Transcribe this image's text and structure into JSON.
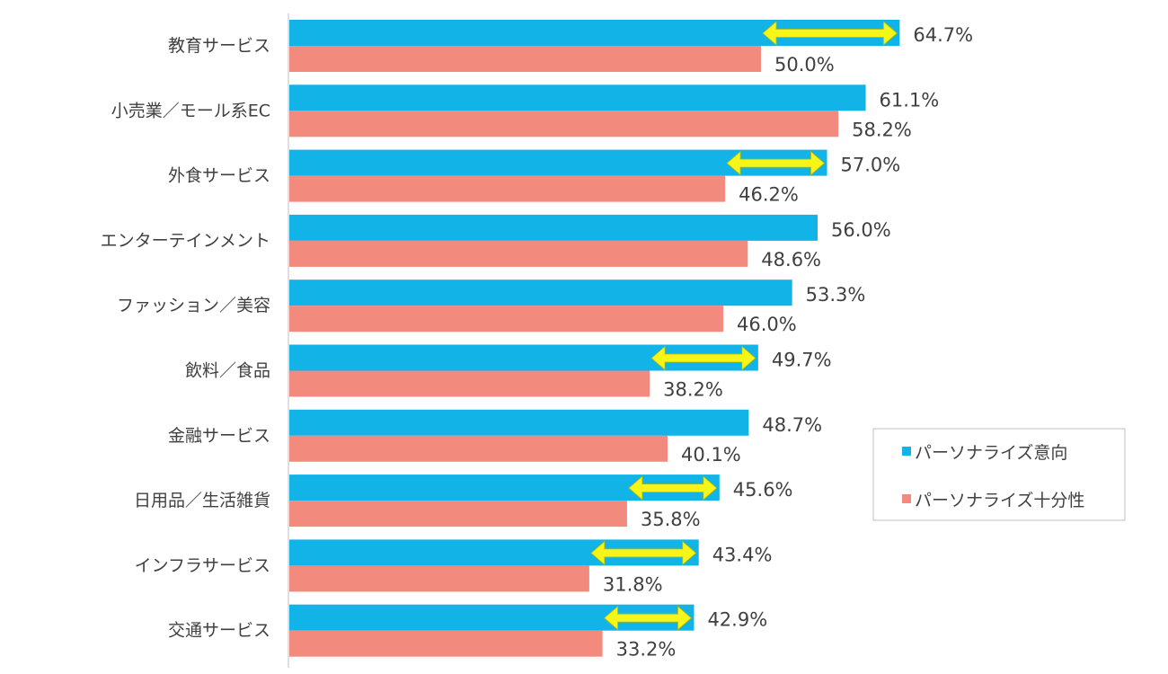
{
  "chart_data": {
    "type": "bar",
    "orientation": "horizontal",
    "categories": [
      "教育サービス",
      "小売業／モール系EC",
      "外食サービス",
      "エンターテインメント",
      "ファッション／美容",
      "飲料／食品",
      "金融サービス",
      "日用品／生活雑貨",
      "インフラサービス",
      "交通サービス"
    ],
    "series": [
      {
        "name": "パーソナライズ意向",
        "color": "#12b4e8",
        "values": [
          64.7,
          61.1,
          57.0,
          56.0,
          53.3,
          49.7,
          48.7,
          45.6,
          43.4,
          42.9
        ],
        "labels": [
          "64.7%",
          "61.1%",
          "57.0%",
          "56.0%",
          "53.3%",
          "49.7%",
          "48.7%",
          "45.6%",
          "43.4%",
          "42.9%"
        ]
      },
      {
        "name": "パーソナライズ十分性",
        "color": "#f28b7d",
        "values": [
          50.0,
          58.2,
          46.2,
          48.6,
          46.0,
          38.2,
          40.1,
          35.8,
          31.8,
          33.2
        ],
        "labels": [
          "50.0%",
          "58.2%",
          "46.2%",
          "48.6%",
          "46.0%",
          "38.2%",
          "40.1%",
          "35.8%",
          "31.8%",
          "33.2%"
        ]
      }
    ],
    "gap_arrow_categories": [
      "教育サービス",
      "外食サービス",
      "飲料／食品",
      "日用品／生活雑貨",
      "インフラサービス",
      "交通サービス"
    ],
    "arrow_color": "#f5f51a",
    "xlim": [
      0,
      70
    ],
    "grid": false,
    "legend_position": "right"
  }
}
